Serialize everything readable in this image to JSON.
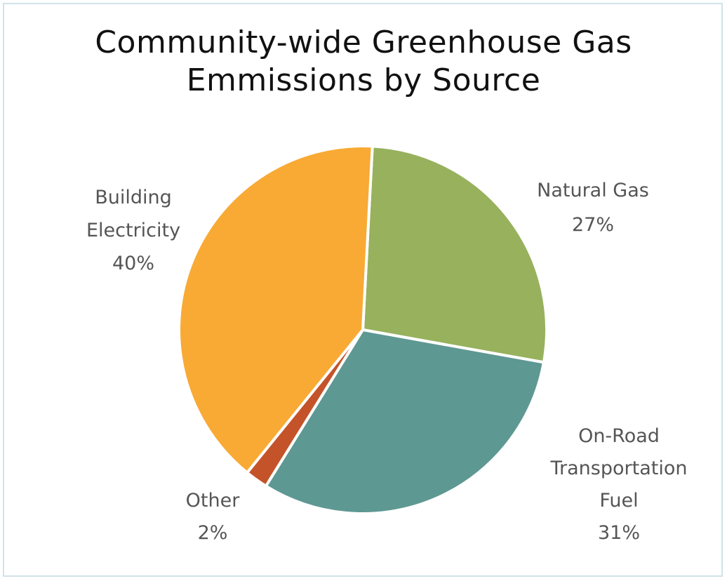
{
  "chart_data": {
    "type": "pie",
    "title_lines": [
      "Community-wide Greenhouse Gas",
      "Emmissions by Source"
    ],
    "slices": [
      {
        "label_lines": [
          "Natural Gas"
        ],
        "percent_label": "27%",
        "value": 27,
        "color": "#97b15d"
      },
      {
        "label_lines": [
          "On-Road",
          "Transportation",
          "Fuel"
        ],
        "percent_label": "31%",
        "value": 31,
        "color": "#5e9893"
      },
      {
        "label_lines": [
          "Other"
        ],
        "percent_label": "2%",
        "value": 2,
        "color": "#c4532a"
      },
      {
        "label_lines": [
          "Building",
          "Electricity"
        ],
        "percent_label": "40%",
        "value": 40,
        "color": "#f8aa35"
      }
    ],
    "start_angle_deg": 3,
    "direction": "clockwise",
    "legend": "none",
    "grid": false
  }
}
